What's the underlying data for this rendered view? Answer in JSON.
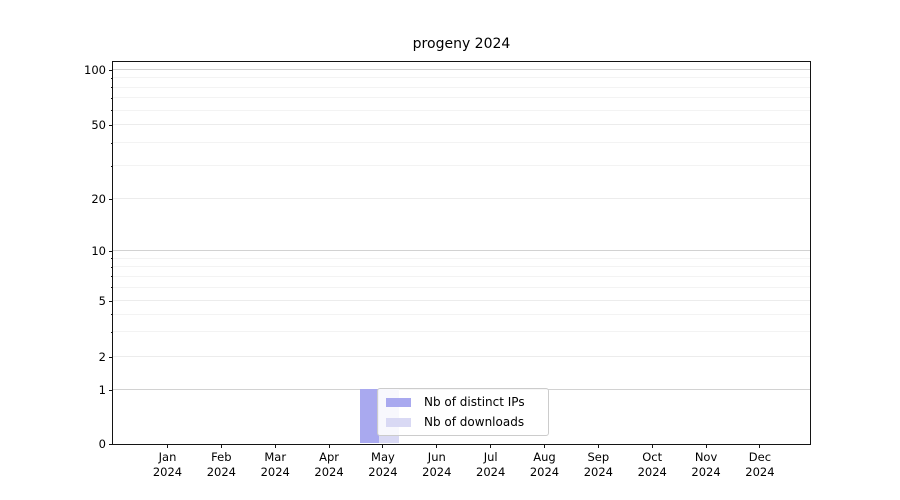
{
  "chart_data": {
    "type": "bar",
    "title": "progeny 2024",
    "categories": [
      "Jan 2024",
      "Feb 2024",
      "Mar 2024",
      "Apr 2024",
      "May 2024",
      "Jun 2024",
      "Jul 2024",
      "Aug 2024",
      "Sep 2024",
      "Oct 2024",
      "Nov 2024",
      "Dec 2024"
    ],
    "series": [
      {
        "name": "Nb of distinct IPs",
        "color": "#a9a9ef",
        "values": [
          0,
          0,
          0,
          0,
          1,
          0,
          0,
          0,
          0,
          0,
          0,
          0
        ]
      },
      {
        "name": "Nb of downloads",
        "color": "#d9d9f4",
        "values": [
          0,
          0,
          0,
          0,
          1,
          0,
          0,
          0,
          0,
          0,
          0,
          0
        ]
      }
    ],
    "yscale": "symlog",
    "yticks": [
      0,
      1,
      2,
      5,
      10,
      20,
      50,
      100
    ],
    "ylim": [
      0,
      105
    ],
    "grid": true,
    "legend_position": "inside-lower-center",
    "colors": {
      "axis": "#141414",
      "grid_decade": "#d2d2d2",
      "grid_major": "#ececec",
      "grid_minor": "#f3f3f3",
      "legend_border": "#cccccc"
    }
  }
}
